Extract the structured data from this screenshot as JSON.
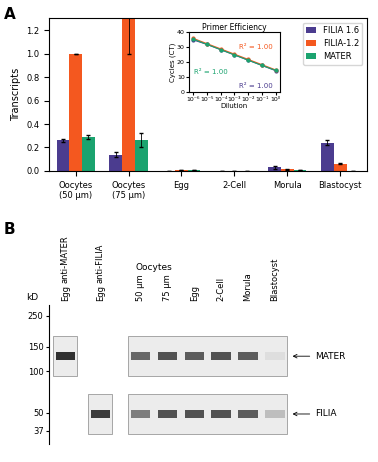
{
  "chart_data": [
    {
      "type": "bar",
      "panel_label": "A",
      "y_label": "Transcripts",
      "categories": [
        "Oocytes\n(50 µm)",
        "Oocytes\n(75 µm)",
        "Egg",
        "2-Cell",
        "Morula",
        "Blastocyst"
      ],
      "series": [
        {
          "name": "FILIA 1.6",
          "color": "#4b3c8f",
          "values": [
            0.26,
            0.14,
            0.0,
            0.0,
            0.03,
            0.24
          ],
          "errors": [
            0.01,
            0.02,
            0.0,
            0.0,
            0.01,
            0.02
          ]
        },
        {
          "name": "FILIA-1.2",
          "color": "#f4581f",
          "values": [
            1.0,
            1.3,
            0.005,
            0.0,
            0.015,
            0.06
          ],
          "errors": [
            0.0,
            0.3,
            0.0,
            0.0,
            0.005,
            0.005
          ]
        },
        {
          "name": "MATER",
          "color": "#1ba36f",
          "values": [
            0.29,
            0.26,
            0.005,
            0.0,
            0.005,
            0.0
          ],
          "errors": [
            0.02,
            0.06,
            0.0,
            0.0,
            0.0,
            0.0
          ]
        }
      ],
      "ylim": [
        0,
        1.3
      ],
      "yticks": [
        {
          "value": 0,
          "label": "0.0"
        },
        0.2,
        0.4,
        0.6,
        0.8,
        {
          "value": 1.0,
          "label": "1.0"
        },
        1.2
      ],
      "legend": "upper right"
    },
    {
      "type": "line",
      "title": "Primer Efficiency",
      "x_label": "Dilution",
      "y_label": "Cycles (CT)",
      "log": "x",
      "marker": "o",
      "x": [
        1e-06,
        1e-05,
        0.0001,
        0.001,
        0.01,
        0.1,
        1
      ],
      "series": [
        {
          "name": "FILIA 1.6",
          "color": "#4b3c8f",
          "values": [
            35,
            32,
            28.5,
            25,
            21.5,
            18,
            14.5
          ],
          "annotation": "R² = 1.00"
        },
        {
          "name": "FILIA-1.2",
          "color": "#f4581f",
          "values": [
            36,
            32.5,
            29,
            25.5,
            22,
            18.5,
            15
          ],
          "annotation": "R² = 1.00"
        },
        {
          "name": "MATER",
          "color": "#1ba36f",
          "values": [
            35.5,
            32,
            28.5,
            25,
            21.5,
            18,
            14.7
          ],
          "annotation": "R² = 1.00"
        }
      ],
      "xlim": [
        5e-07,
        2
      ],
      "xticks": [
        {
          "value": 1e-06,
          "label": "10⁻⁶"
        },
        {
          "value": 1e-05,
          "label": "10⁻⁵"
        },
        {
          "value": 0.0001,
          "label": "10⁻⁴"
        },
        {
          "value": 0.001,
          "label": "10⁻³"
        },
        {
          "value": 0.01,
          "label": "10⁻²"
        },
        {
          "value": 0.1,
          "label": "10⁻¹"
        },
        {
          "value": 1,
          "label": "10⁰"
        }
      ],
      "ylim": [
        0,
        40
      ],
      "yticks": [
        0,
        10,
        20,
        30,
        40
      ]
    }
  ],
  "blot": {
    "panel_label": "B",
    "y_label": "kD",
    "log": "y",
    "ylim": [
      30,
      300
    ],
    "yticks": [
      250,
      150,
      100,
      50,
      37
    ],
    "proteins": [
      {
        "name": "MATER",
        "kd": 128
      },
      {
        "name": "FILIA",
        "kd": 49
      }
    ],
    "blots": [
      {
        "antibody": "anti-MATER",
        "lanes": [
          {
            "label": "Egg",
            "bands": {
              "MATER": 0.95
            }
          }
        ]
      },
      {
        "antibody": "anti-FILIA",
        "lanes": [
          {
            "label": "Egg",
            "bands": {
              "FILIA": 0.9
            }
          }
        ]
      },
      {
        "lanes": [
          {
            "label": "50 µm",
            "group": "Oocytes",
            "bands": {
              "MATER": 0.7,
              "FILIA": 0.6
            }
          },
          {
            "label": "75 µm",
            "group": "Oocytes",
            "bands": {
              "MATER": 0.8,
              "FILIA": 0.8
            }
          },
          {
            "label": "Egg",
            "bands": {
              "MATER": 0.75,
              "FILIA": 0.8
            }
          },
          {
            "label": "2-Cell",
            "bands": {
              "MATER": 0.8,
              "FILIA": 0.8
            }
          },
          {
            "label": "Morula",
            "bands": {
              "MATER": 0.75,
              "FILIA": 0.75
            }
          },
          {
            "label": "Blastocyst",
            "bands": {
              "MATER": 0.15,
              "FILIA": 0.3
            }
          }
        ]
      }
    ]
  }
}
